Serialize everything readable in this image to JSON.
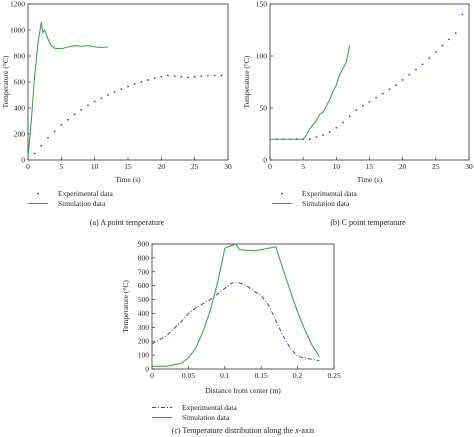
{
  "chart_data": [
    {
      "type": "line",
      "caption": "(a) A point temperature",
      "xlabel": "Time (s)",
      "ylabel": "Temperature (°C)",
      "xlim": [
        0,
        30
      ],
      "ylim": [
        0,
        1200
      ],
      "xticks": [
        0,
        5,
        10,
        15,
        20,
        25,
        30
      ],
      "yticks": [
        0,
        200,
        400,
        600,
        800,
        1000,
        1200
      ],
      "legend": [
        "Experimental data",
        "Simulation data"
      ],
      "series": [
        {
          "name": "Experimental data",
          "style": "dots",
          "x": [
            1,
            2,
            3,
            4,
            5,
            6,
            7,
            8,
            9,
            10,
            11,
            12,
            13,
            14,
            15,
            16,
            17,
            18,
            19,
            20,
            21,
            22,
            23,
            24,
            25,
            26,
            27,
            28,
            29
          ],
          "y": [
            50,
            110,
            170,
            220,
            270,
            310,
            350,
            385,
            420,
            450,
            475,
            500,
            525,
            545,
            565,
            585,
            600,
            615,
            630,
            640,
            650,
            645,
            640,
            635,
            640,
            645,
            650,
            650,
            650
          ]
        },
        {
          "name": "Simulation data",
          "style": "line",
          "x": [
            0,
            0.5,
            1,
            1.5,
            2,
            2.2,
            2.5,
            3,
            3.5,
            4,
            5,
            6,
            7,
            8,
            9,
            10,
            11,
            12
          ],
          "y": [
            20,
            300,
            650,
            900,
            1060,
            980,
            1000,
            930,
            880,
            860,
            855,
            870,
            880,
            875,
            880,
            870,
            865,
            870
          ]
        }
      ]
    },
    {
      "type": "line",
      "caption": "(b) C point temperature",
      "xlabel": "Time (s)",
      "ylabel": "Temperature (°C)",
      "xlim": [
        0,
        30
      ],
      "ylim": [
        0,
        150
      ],
      "xticks": [
        0,
        5,
        10,
        15,
        20,
        25,
        30
      ],
      "yticks": [
        0,
        50,
        100,
        150
      ],
      "legend": [
        "Experimental data",
        "Simulation data"
      ],
      "series": [
        {
          "name": "Experimental data",
          "style": "dots",
          "x": [
            1,
            2,
            3,
            4,
            5,
            6,
            7,
            8,
            9,
            10,
            11,
            12,
            13,
            14,
            15,
            16,
            17,
            18,
            19,
            20,
            21,
            22,
            23,
            24,
            25,
            26,
            27,
            28,
            29
          ],
          "y": [
            20,
            20,
            20,
            20,
            20,
            20,
            22,
            24,
            27,
            31,
            36,
            42,
            48,
            52,
            56,
            60,
            64,
            68,
            72,
            77,
            82,
            87,
            92,
            98,
            104,
            110,
            116,
            122,
            140
          ]
        },
        {
          "name": "Simulation data",
          "style": "line",
          "x": [
            0,
            1,
            2,
            3,
            4,
            5,
            5.5,
            6,
            6.5,
            7,
            7.5,
            8,
            8.5,
            9,
            9.5,
            10,
            10.5,
            11,
            11.5,
            12
          ],
          "y": [
            20,
            20,
            20,
            20,
            20,
            20,
            24,
            30,
            34,
            38,
            44,
            46,
            52,
            58,
            66,
            72,
            82,
            88,
            94,
            110
          ]
        }
      ]
    },
    {
      "type": "line",
      "caption_prefix": "(c) Temperature distribution along the ",
      "caption_axis": "x",
      "caption_suffix": "-axis",
      "xlabel": "Distance from center (m)",
      "ylabel": "Temperature (°C)",
      "xlim": [
        0,
        0.25
      ],
      "ylim": [
        0,
        900
      ],
      "xticks": [
        0,
        0.05,
        0.1,
        0.15,
        0.2,
        0.25
      ],
      "xticklabels": [
        "0",
        "0.05",
        "0.1",
        "0.15",
        "0.2",
        "0.25"
      ],
      "yticks": [
        0,
        100,
        200,
        300,
        400,
        500,
        600,
        700,
        800,
        900
      ],
      "legend": [
        "Experimental data",
        "Simulation data"
      ],
      "series": [
        {
          "name": "Experimental data",
          "style": "dashdot",
          "x": [
            0,
            0.01,
            0.02,
            0.03,
            0.04,
            0.05,
            0.06,
            0.07,
            0.08,
            0.09,
            0.1,
            0.11,
            0.12,
            0.13,
            0.14,
            0.15,
            0.16,
            0.17,
            0.18,
            0.19,
            0.2,
            0.21,
            0.22,
            0.23
          ],
          "y": [
            180,
            210,
            240,
            290,
            340,
            400,
            440,
            470,
            500,
            540,
            580,
            620,
            620,
            600,
            560,
            530,
            460,
            350,
            240,
            150,
            90,
            80,
            70,
            60
          ]
        },
        {
          "name": "Simulation data",
          "style": "line",
          "x": [
            0,
            0.02,
            0.04,
            0.05,
            0.06,
            0.07,
            0.08,
            0.09,
            0.1,
            0.11,
            0.115,
            0.12,
            0.13,
            0.14,
            0.15,
            0.16,
            0.17,
            0.18,
            0.19,
            0.2,
            0.21,
            0.22,
            0.23
          ],
          "y": [
            20,
            20,
            40,
            80,
            150,
            270,
            420,
            620,
            870,
            890,
            900,
            860,
            855,
            850,
            860,
            870,
            880,
            720,
            560,
            410,
            280,
            170,
            90
          ]
        }
      ]
    }
  ],
  "colors": {
    "experimental": "#3a43c4",
    "simulation": "#2e9e4a",
    "axis": "#333333"
  }
}
